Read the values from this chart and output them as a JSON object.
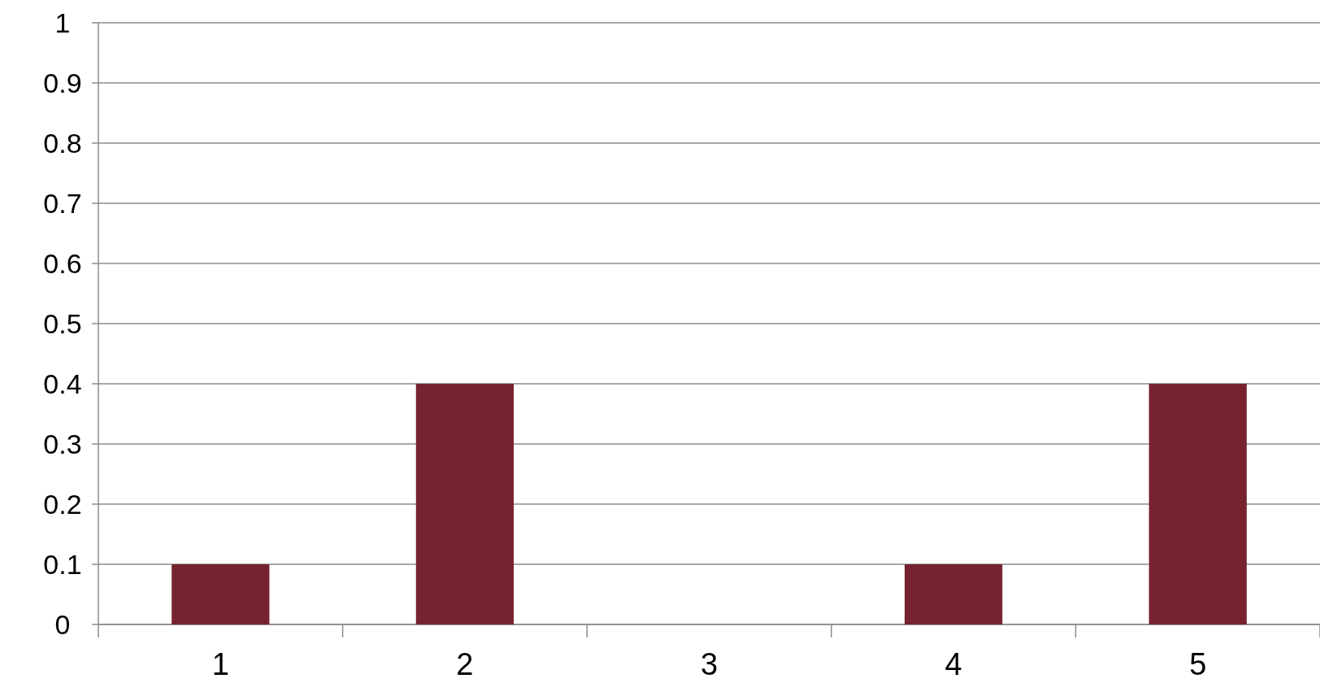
{
  "chart_data": {
    "type": "bar",
    "categories": [
      "1",
      "2",
      "3",
      "4",
      "5"
    ],
    "values": [
      0.1,
      0.4,
      0,
      0.1,
      0.4
    ],
    "color": "#76232f",
    "ylim": [
      0,
      1
    ],
    "yticks": [
      0,
      0.1,
      0.2,
      0.3,
      0.4,
      0.5,
      0.6,
      0.7,
      0.8,
      0.9,
      1
    ],
    "grid": "y"
  }
}
